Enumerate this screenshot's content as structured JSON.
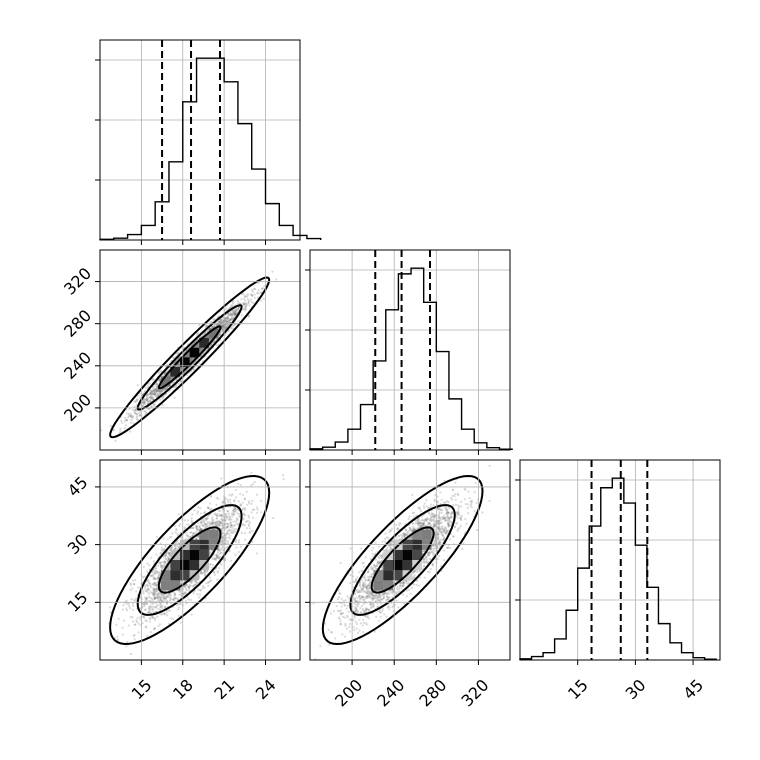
{
  "chart_data": {
    "type": "corner",
    "parameters": [
      {
        "ticks": [
          15,
          18,
          21,
          24
        ],
        "range": [
          12.0,
          26.5
        ],
        "mean": 18.5,
        "sd": 1.9,
        "quantiles": [
          16.5,
          18.6,
          20.7
        ],
        "hist": {
          "x0": 12.0,
          "width": 1.0,
          "counts": [
            4,
            10,
            30,
            80,
            210,
            430,
            760,
            1000,
            1000,
            870,
            640,
            390,
            200,
            80,
            25,
            8
          ]
        }
      },
      {
        "ticks": [
          200,
          240,
          280,
          320
        ],
        "range": [
          160,
          350
        ],
        "mean": 248,
        "sd": 25,
        "quantiles": [
          222,
          247,
          274
        ],
        "hist": {
          "x0": 160,
          "width": 12,
          "counts": [
            6,
            15,
            42,
            110,
            240,
            470,
            740,
            930,
            960,
            780,
            520,
            270,
            110,
            38,
            12,
            4
          ]
        }
      },
      {
        "ticks": [
          15,
          30,
          45
        ],
        "range": [
          0,
          52
        ],
        "mean": 26,
        "sd": 7.2,
        "quantiles": [
          18.6,
          26.2,
          33.1
        ],
        "hist": {
          "x0": 0.0,
          "width": 3.0,
          "counts": [
            6,
            18,
            38,
            110,
            260,
            480,
            700,
            900,
            950,
            820,
            600,
            380,
            190,
            90,
            38,
            12,
            4
          ]
        }
      }
    ],
    "pairs": [
      {
        "x": 0,
        "y": 1,
        "correlation": 0.97
      },
      {
        "x": 0,
        "y": 2,
        "correlation": 0.8
      },
      {
        "x": 1,
        "y": 2,
        "correlation": 0.82
      }
    ],
    "contour_levels": [
      0.5,
      0.86,
      0.99
    ],
    "grid": true,
    "histogram_style": "step",
    "quantile_style": "dashed"
  }
}
